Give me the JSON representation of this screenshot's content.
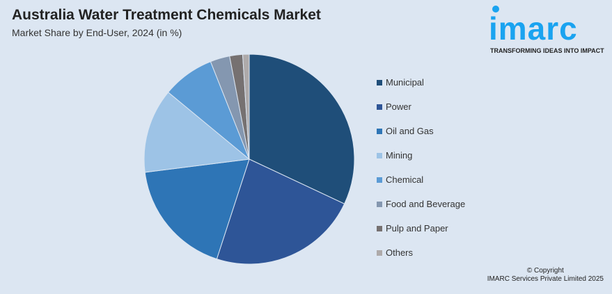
{
  "header": {
    "title": "Australia Water Treatment Chemicals Market",
    "subtitle": "Market Share by End-User, 2024 (in %)"
  },
  "logo": {
    "text": "imarc",
    "tagline": "TRANSFORMING IDEAS INTO IMPACT"
  },
  "footer": {
    "copyright": "© Copyright",
    "company": "IMARC Services Private Limited 2025"
  },
  "chart_data": {
    "type": "pie",
    "title": "Australia Water Treatment Chemicals Market",
    "subtitle": "Market Share by End-User, 2024 (in %)",
    "legend_position": "right",
    "start": "top, clockwise",
    "categories": [
      "Municipal",
      "Power",
      "Oil and Gas",
      "Mining",
      "Chemical",
      "Food and Beverage",
      "Pulp and Paper",
      "Others"
    ],
    "values": [
      32,
      23,
      18,
      13,
      8,
      3,
      2,
      1
    ],
    "colors": [
      "#1f4e79",
      "#2e5597",
      "#2e75b6",
      "#9dc3e6",
      "#5b9bd5",
      "#8497b0",
      "#767171",
      "#aeaaaa"
    ]
  }
}
